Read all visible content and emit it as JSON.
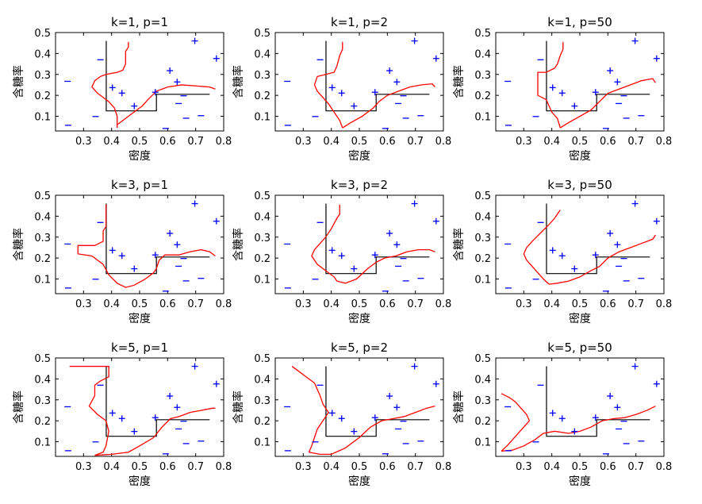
{
  "figure": {
    "xlabel": "密度",
    "ylabel": "含糖率"
  },
  "chart_data": [
    {
      "type": "scatter",
      "title": "k=1, p=1",
      "k": 1,
      "p": 1
    },
    {
      "type": "scatter",
      "title": "k=1, p=2",
      "k": 1,
      "p": 2
    },
    {
      "type": "scatter",
      "title": "k=1, p=50",
      "k": 1,
      "p": 50
    },
    {
      "type": "scatter",
      "title": "k=3, p=1",
      "k": 3,
      "p": 1
    },
    {
      "type": "scatter",
      "title": "k=3, p=2",
      "k": 3,
      "p": 2
    },
    {
      "type": "scatter",
      "title": "k=3, p=50",
      "k": 3,
      "p": 50
    },
    {
      "type": "scatter",
      "title": "k=5, p=1",
      "k": 5,
      "p": 1
    },
    {
      "type": "scatter",
      "title": "k=5, p=2",
      "k": 5,
      "p": 2
    },
    {
      "type": "scatter",
      "title": "k=5, p=50",
      "k": 5,
      "p": 50
    }
  ],
  "shared": {
    "xlim": [
      0.2,
      0.8
    ],
    "ylim": [
      0.03,
      0.5
    ],
    "xticks": [
      0.3,
      0.4,
      0.5,
      0.6,
      0.7,
      0.8
    ],
    "yticks": [
      0.1,
      0.2,
      0.3,
      0.4,
      0.5
    ],
    "positive_marker": "+",
    "negative_marker": "-",
    "positive_color": "#0000ff",
    "negative_color": "#0000ff",
    "knn_boundary_color": "#ff0000",
    "tree_boundary_color": "#000000",
    "positive_points": [
      [
        0.697,
        0.46
      ],
      [
        0.774,
        0.376
      ],
      [
        0.634,
        0.264
      ],
      [
        0.608,
        0.318
      ],
      [
        0.556,
        0.215
      ],
      [
        0.403,
        0.237
      ],
      [
        0.481,
        0.149
      ],
      [
        0.437,
        0.211
      ]
    ],
    "negative_points": [
      [
        0.666,
        0.091
      ],
      [
        0.243,
        0.267
      ],
      [
        0.245,
        0.057
      ],
      [
        0.343,
        0.099
      ],
      [
        0.639,
        0.161
      ],
      [
        0.657,
        0.198
      ],
      [
        0.36,
        0.37
      ],
      [
        0.593,
        0.042
      ],
      [
        0.719,
        0.103
      ]
    ],
    "decision_tree_boundary": [
      [
        0.381,
        0.46
      ],
      [
        0.381,
        0.126
      ],
      [
        0.56,
        0.126
      ],
      [
        0.56,
        0.205
      ],
      [
        0.75,
        0.205
      ]
    ]
  },
  "knn_boundaries": [
    [
      [
        0.46,
        0.455
      ],
      [
        0.46,
        0.43
      ],
      [
        0.45,
        0.41
      ],
      [
        0.45,
        0.35
      ],
      [
        0.44,
        0.32
      ],
      [
        0.42,
        0.31
      ],
      [
        0.38,
        0.3
      ],
      [
        0.36,
        0.29
      ],
      [
        0.34,
        0.27
      ],
      [
        0.33,
        0.24
      ],
      [
        0.35,
        0.21
      ],
      [
        0.37,
        0.19
      ],
      [
        0.39,
        0.17
      ],
      [
        0.41,
        0.14
      ],
      [
        0.42,
        0.1
      ],
      [
        0.42,
        0.045
      ]
    ],
    [
      [
        0.44,
        0.455
      ],
      [
        0.44,
        0.42
      ],
      [
        0.43,
        0.39
      ],
      [
        0.42,
        0.34
      ],
      [
        0.41,
        0.31
      ],
      [
        0.38,
        0.3
      ],
      [
        0.35,
        0.29
      ],
      [
        0.34,
        0.25
      ],
      [
        0.35,
        0.22
      ],
      [
        0.37,
        0.19
      ],
      [
        0.39,
        0.16
      ],
      [
        0.41,
        0.12
      ],
      [
        0.43,
        0.08
      ],
      [
        0.44,
        0.045
      ]
    ],
    [
      [
        0.44,
        0.455
      ],
      [
        0.44,
        0.42
      ],
      [
        0.43,
        0.39
      ],
      [
        0.42,
        0.35
      ],
      [
        0.41,
        0.33
      ],
      [
        0.38,
        0.31
      ],
      [
        0.35,
        0.31
      ],
      [
        0.35,
        0.28
      ],
      [
        0.35,
        0.2
      ],
      [
        0.38,
        0.18
      ],
      [
        0.39,
        0.15
      ],
      [
        0.4,
        0.12
      ],
      [
        0.42,
        0.09
      ],
      [
        0.43,
        0.045
      ]
    ],
    [
      [
        0.38,
        0.455
      ],
      [
        0.38,
        0.35
      ],
      [
        0.37,
        0.33
      ],
      [
        0.37,
        0.28
      ],
      [
        0.34,
        0.26
      ],
      [
        0.28,
        0.26
      ],
      [
        0.28,
        0.22
      ],
      [
        0.33,
        0.21
      ],
      [
        0.37,
        0.17
      ],
      [
        0.39,
        0.12
      ],
      [
        0.42,
        0.08
      ],
      [
        0.45,
        0.06
      ],
      [
        0.48,
        0.07
      ],
      [
        0.52,
        0.1
      ],
      [
        0.55,
        0.13
      ],
      [
        0.56,
        0.15
      ]
    ],
    [
      [
        0.43,
        0.455
      ],
      [
        0.43,
        0.41
      ],
      [
        0.42,
        0.39
      ],
      [
        0.4,
        0.34
      ],
      [
        0.38,
        0.3
      ],
      [
        0.36,
        0.27
      ],
      [
        0.34,
        0.24
      ],
      [
        0.33,
        0.21
      ],
      [
        0.35,
        0.17
      ],
      [
        0.38,
        0.14
      ],
      [
        0.41,
        0.11
      ],
      [
        0.42,
        0.09
      ]
    ],
    [
      [
        0.43,
        0.43
      ],
      [
        0.41,
        0.39
      ],
      [
        0.39,
        0.36
      ],
      [
        0.36,
        0.32
      ],
      [
        0.33,
        0.28
      ],
      [
        0.31,
        0.25
      ],
      [
        0.3,
        0.22
      ],
      [
        0.31,
        0.19
      ],
      [
        0.33,
        0.16
      ],
      [
        0.35,
        0.13
      ],
      [
        0.37,
        0.1
      ],
      [
        0.39,
        0.075
      ]
    ],
    [
      [
        0.25,
        0.46
      ],
      [
        0.39,
        0.46
      ],
      [
        0.39,
        0.41
      ],
      [
        0.36,
        0.39
      ],
      [
        0.34,
        0.37
      ],
      [
        0.34,
        0.32
      ],
      [
        0.32,
        0.27
      ],
      [
        0.35,
        0.23
      ],
      [
        0.38,
        0.2
      ],
      [
        0.39,
        0.15
      ],
      [
        0.38,
        0.08
      ],
      [
        0.37,
        0.05
      ],
      [
        0.34,
        0.035
      ]
    ],
    [
      [
        0.26,
        0.46
      ],
      [
        0.28,
        0.44
      ],
      [
        0.3,
        0.42
      ],
      [
        0.32,
        0.4
      ],
      [
        0.34,
        0.38
      ],
      [
        0.35,
        0.35
      ],
      [
        0.36,
        0.32
      ],
      [
        0.37,
        0.28
      ],
      [
        0.39,
        0.24
      ],
      [
        0.37,
        0.2
      ],
      [
        0.35,
        0.16
      ],
      [
        0.34,
        0.12
      ],
      [
        0.33,
        0.08
      ],
      [
        0.32,
        0.05
      ]
    ],
    [
      [
        0.22,
        0.33
      ],
      [
        0.25,
        0.31
      ],
      [
        0.27,
        0.29
      ],
      [
        0.29,
        0.26
      ],
      [
        0.31,
        0.23
      ],
      [
        0.32,
        0.2
      ],
      [
        0.3,
        0.17
      ],
      [
        0.28,
        0.14
      ],
      [
        0.26,
        0.11
      ],
      [
        0.24,
        0.08
      ],
      [
        0.22,
        0.055
      ]
    ]
  ],
  "knn_boundaries_right": [
    [
      [
        0.42,
        0.06
      ],
      [
        0.46,
        0.1
      ],
      [
        0.51,
        0.15
      ],
      [
        0.53,
        0.18
      ],
      [
        0.56,
        0.22
      ],
      [
        0.6,
        0.24
      ],
      [
        0.65,
        0.25
      ],
      [
        0.7,
        0.245
      ],
      [
        0.75,
        0.24
      ],
      [
        0.77,
        0.23
      ]
    ],
    [
      [
        0.44,
        0.045
      ],
      [
        0.47,
        0.07
      ],
      [
        0.51,
        0.1
      ],
      [
        0.55,
        0.14
      ],
      [
        0.57,
        0.17
      ],
      [
        0.6,
        0.2
      ],
      [
        0.64,
        0.22
      ],
      [
        0.68,
        0.24
      ],
      [
        0.72,
        0.25
      ],
      [
        0.76,
        0.255
      ],
      [
        0.77,
        0.24
      ]
    ],
    [
      [
        0.43,
        0.045
      ],
      [
        0.46,
        0.07
      ],
      [
        0.5,
        0.1
      ],
      [
        0.54,
        0.13
      ],
      [
        0.57,
        0.17
      ],
      [
        0.6,
        0.21
      ],
      [
        0.64,
        0.23
      ],
      [
        0.68,
        0.25
      ],
      [
        0.72,
        0.27
      ],
      [
        0.76,
        0.28
      ],
      [
        0.77,
        0.26
      ]
    ],
    [
      [
        0.56,
        0.15
      ],
      [
        0.57,
        0.19
      ],
      [
        0.59,
        0.215
      ],
      [
        0.64,
        0.215
      ],
      [
        0.68,
        0.23
      ],
      [
        0.72,
        0.24
      ],
      [
        0.75,
        0.23
      ],
      [
        0.77,
        0.21
      ]
    ],
    [
      [
        0.42,
        0.09
      ],
      [
        0.45,
        0.08
      ],
      [
        0.49,
        0.1
      ],
      [
        0.53,
        0.15
      ],
      [
        0.56,
        0.18
      ],
      [
        0.59,
        0.2
      ],
      [
        0.63,
        0.21
      ],
      [
        0.67,
        0.23
      ],
      [
        0.71,
        0.24
      ],
      [
        0.75,
        0.24
      ],
      [
        0.77,
        0.23
      ]
    ],
    [
      [
        0.39,
        0.075
      ],
      [
        0.42,
        0.08
      ],
      [
        0.46,
        0.09
      ],
      [
        0.5,
        0.11
      ],
      [
        0.54,
        0.14
      ],
      [
        0.57,
        0.16
      ],
      [
        0.6,
        0.2
      ],
      [
        0.64,
        0.23
      ],
      [
        0.68,
        0.25
      ],
      [
        0.72,
        0.27
      ],
      [
        0.76,
        0.29
      ],
      [
        0.77,
        0.31
      ]
    ],
    [
      [
        0.34,
        0.035
      ],
      [
        0.4,
        0.04
      ],
      [
        0.46,
        0.05
      ],
      [
        0.5,
        0.08
      ],
      [
        0.55,
        0.12
      ],
      [
        0.58,
        0.17
      ],
      [
        0.61,
        0.21
      ],
      [
        0.64,
        0.22
      ],
      [
        0.68,
        0.24
      ],
      [
        0.72,
        0.25
      ],
      [
        0.76,
        0.26
      ],
      [
        0.77,
        0.26
      ]
    ],
    [
      [
        0.32,
        0.05
      ],
      [
        0.36,
        0.04
      ],
      [
        0.4,
        0.04
      ],
      [
        0.45,
        0.07
      ],
      [
        0.5,
        0.12
      ],
      [
        0.54,
        0.17
      ],
      [
        0.58,
        0.2
      ],
      [
        0.62,
        0.21
      ],
      [
        0.66,
        0.22
      ],
      [
        0.7,
        0.24
      ],
      [
        0.74,
        0.26
      ],
      [
        0.77,
        0.27
      ]
    ],
    [
      [
        0.22,
        0.055
      ],
      [
        0.26,
        0.06
      ],
      [
        0.3,
        0.08
      ],
      [
        0.34,
        0.11
      ],
      [
        0.37,
        0.14
      ],
      [
        0.41,
        0.15
      ],
      [
        0.46,
        0.14
      ],
      [
        0.5,
        0.15
      ],
      [
        0.54,
        0.17
      ],
      [
        0.58,
        0.2
      ],
      [
        0.62,
        0.21
      ],
      [
        0.66,
        0.215
      ],
      [
        0.7,
        0.23
      ],
      [
        0.74,
        0.25
      ],
      [
        0.77,
        0.27
      ]
    ]
  ]
}
